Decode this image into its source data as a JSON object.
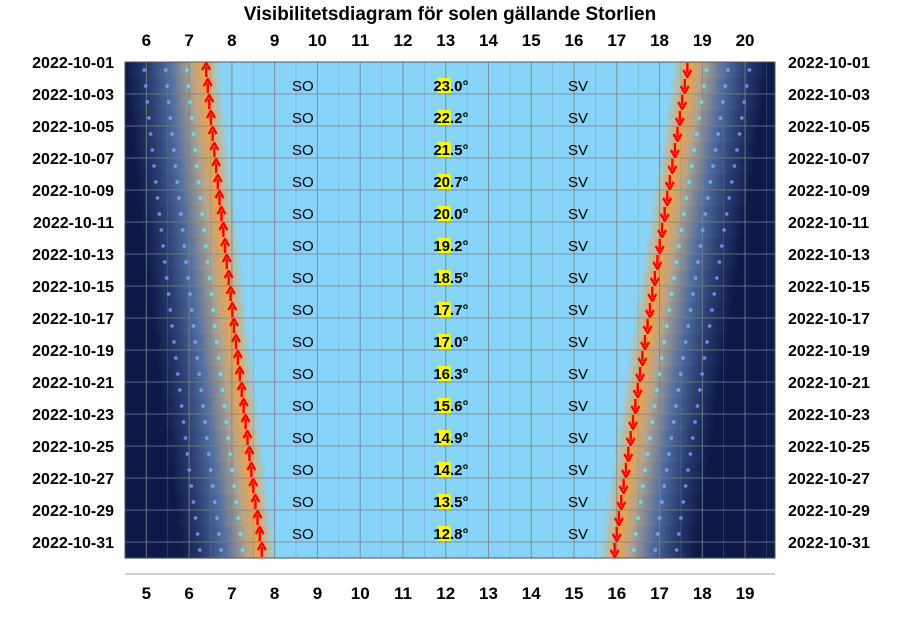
{
  "chart_data": {
    "type": "visibility-diagram",
    "title": "Visibilitetsdiagram för solen gällande Storlien",
    "top_hour_labels": [
      "6",
      "7",
      "8",
      "9",
      "10",
      "11",
      "12",
      "13",
      "14",
      "15",
      "16",
      "17",
      "18",
      "19",
      "20"
    ],
    "bottom_hour_labels": [
      "5",
      "6",
      "7",
      "8",
      "9",
      "10",
      "11",
      "12",
      "13",
      "14",
      "15",
      "16",
      "17",
      "18",
      "19"
    ],
    "dates_labeled": [
      "2022-10-01",
      "2022-10-03",
      "2022-10-05",
      "2022-10-07",
      "2022-10-09",
      "2022-10-11",
      "2022-10-13",
      "2022-10-15",
      "2022-10-17",
      "2022-10-19",
      "2022-10-21",
      "2022-10-23",
      "2022-10-25",
      "2022-10-27",
      "2022-10-29",
      "2022-10-31"
    ],
    "rows": [
      {
        "date": "2022-10-01",
        "sunrise": 7.4,
        "sunset": 18.65,
        "max_altitude": "23.0°",
        "rise_dir": "SO",
        "set_dir": "SV"
      },
      {
        "date": "2022-10-03",
        "sunrise": 7.47,
        "sunset": 18.53,
        "max_altitude": "22.2°",
        "rise_dir": "SO",
        "set_dir": "SV"
      },
      {
        "date": "2022-10-05",
        "sunrise": 7.55,
        "sunset": 18.42,
        "max_altitude": "21.5°",
        "rise_dir": "SO",
        "set_dir": "SV"
      },
      {
        "date": "2022-10-07",
        "sunrise": 7.63,
        "sunset": 18.3,
        "max_altitude": "20.7°",
        "rise_dir": "SO",
        "set_dir": "SV"
      },
      {
        "date": "2022-10-09",
        "sunrise": 7.71,
        "sunset": 18.18,
        "max_altitude": "20.0°",
        "rise_dir": "SO",
        "set_dir": "SV"
      },
      {
        "date": "2022-10-11",
        "sunrise": 7.8,
        "sunset": 18.06,
        "max_altitude": "19.2°",
        "rise_dir": "SO",
        "set_dir": "SV"
      },
      {
        "date": "2022-10-13",
        "sunrise": 7.88,
        "sunset": 17.95,
        "max_altitude": "18.5°",
        "rise_dir": "SO",
        "set_dir": "SV"
      },
      {
        "date": "2022-10-15",
        "sunrise": 7.97,
        "sunset": 17.83,
        "max_altitude": "17.7°",
        "rise_dir": "SO",
        "set_dir": "SV"
      },
      {
        "date": "2022-10-17",
        "sunrise": 8.05,
        "sunset": 17.72,
        "max_altitude": "17.0°",
        "rise_dir": "SO",
        "set_dir": "SV"
      },
      {
        "date": "2022-10-19",
        "sunrise": 8.14,
        "sunset": 17.6,
        "max_altitude": "16.3°",
        "rise_dir": "SO",
        "set_dir": "SV"
      },
      {
        "date": "2022-10-21",
        "sunrise": 8.23,
        "sunset": 17.49,
        "max_altitude": "15.6°",
        "rise_dir": "SO",
        "set_dir": "SV"
      },
      {
        "date": "2022-10-23",
        "sunrise": 8.32,
        "sunset": 17.38,
        "max_altitude": "14.9°",
        "rise_dir": "SO",
        "set_dir": "SV"
      },
      {
        "date": "2022-10-25",
        "sunrise": 8.41,
        "sunset": 17.27,
        "max_altitude": "14.2°",
        "rise_dir": "SO",
        "set_dir": "SV"
      },
      {
        "date": "2022-10-27",
        "sunrise": 8.5,
        "sunset": 17.16,
        "max_altitude": "13.5°",
        "rise_dir": "SO",
        "set_dir": "SV"
      },
      {
        "date": "2022-10-29",
        "sunrise": 8.6,
        "sunset": 17.05,
        "max_altitude": "12.8°",
        "rise_dir": "SO",
        "set_dir": "SV"
      }
    ],
    "last_date": {
      "date": "2022-10-31",
      "sunrise": 8.7,
      "sunset": 16.95
    },
    "time_axis_top": [
      5.5,
      20.7
    ],
    "time_axis_bottom": [
      4.5,
      19.7
    ],
    "grid": true,
    "colors": {
      "day": "#87d4f8",
      "twilight": "#f0a14a",
      "night": "#0d1a4a",
      "rise_arrow": "#ff0000",
      "set_arrow": "#ff0000",
      "altitude_highlight": "#ffff00",
      "grid": "#808080"
    }
  }
}
